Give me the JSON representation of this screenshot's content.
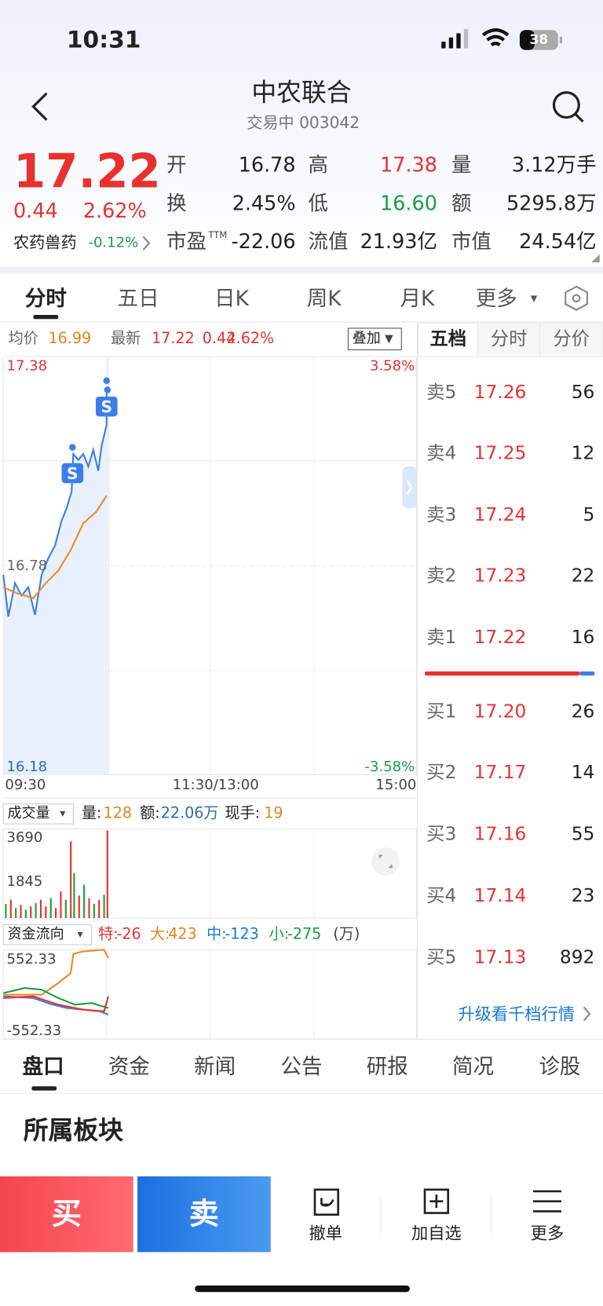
{
  "status_bar": {
    "time": "10:31",
    "battery": "38"
  },
  "header": {
    "title": "中农联合",
    "subtitle": "交易中 003042"
  },
  "quote": {
    "price": "17.22",
    "change": "0.44",
    "change_pct": "2.62%",
    "sector": "农药兽药",
    "sector_change": "-0.12%",
    "stats": [
      {
        "label": "开",
        "value": "16.78"
      },
      {
        "label": "高",
        "value": "17.38"
      },
      {
        "label": "量",
        "value": "3.12万手"
      },
      {
        "label": "换",
        "value": "2.45%"
      },
      {
        "label": "低",
        "value": "16.60"
      },
      {
        "label": "额",
        "value": "5295.8万"
      },
      {
        "label": "市盈",
        "sup": "TTM",
        "value": "-22.06"
      },
      {
        "label": "流值",
        "value": "21.93亿"
      },
      {
        "label": "市值",
        "value": "24.54亿"
      }
    ]
  },
  "chart_tabs": [
    "分时",
    "五日",
    "日K",
    "周K",
    "月K",
    "更多"
  ],
  "chart_info": {
    "avg_label": "均价",
    "avg": "16.99",
    "latest_label": "最新",
    "latest": "17.22",
    "change": "0.44",
    "change_pct": "2.62%",
    "overlay": "叠加"
  },
  "price_axis": {
    "high": "17.38",
    "open": "16.78",
    "low": "16.18",
    "high_pct": "3.58%",
    "low_pct": "-3.58%",
    "times": [
      "09:30",
      "11:30/13:00",
      "15:00"
    ]
  },
  "volume": {
    "selector": "成交量",
    "vol_label": "量:",
    "vol": "128",
    "amt_label": "额:",
    "amt": "22.06万",
    "hand_label": "现手:",
    "hand": "19",
    "ticks": [
      "3690",
      "1845"
    ]
  },
  "fund_flow": {
    "selector": "资金流向",
    "items": [
      {
        "label": "特:",
        "value": "-26"
      },
      {
        "label": "大:",
        "value": "423"
      },
      {
        "label": "中:",
        "value": "-123"
      },
      {
        "label": "小:",
        "value": "-275"
      }
    ],
    "unit": "(万)",
    "ticks": [
      "552.33",
      "-552.33"
    ]
  },
  "order_book": {
    "tabs": [
      "五档",
      "分时",
      "分价"
    ],
    "asks": [
      {
        "label": "卖5",
        "price": "17.26",
        "volume": "56"
      },
      {
        "label": "卖4",
        "price": "17.25",
        "volume": "12"
      },
      {
        "label": "卖3",
        "price": "17.24",
        "volume": "5"
      },
      {
        "label": "卖2",
        "price": "17.23",
        "volume": "22"
      },
      {
        "label": "卖1",
        "price": "17.22",
        "volume": "16"
      }
    ],
    "bids": [
      {
        "label": "买1",
        "price": "17.20",
        "volume": "26"
      },
      {
        "label": "买2",
        "price": "17.17",
        "volume": "14"
      },
      {
        "label": "买3",
        "price": "17.16",
        "volume": "55"
      },
      {
        "label": "买4",
        "price": "17.14",
        "volume": "23"
      },
      {
        "label": "买5",
        "price": "17.13",
        "volume": "892"
      }
    ],
    "upgrade": "升级看千档行情"
  },
  "bottom_tabs": [
    "盘口",
    "资金",
    "新闻",
    "公告",
    "研报",
    "简况",
    "诊股"
  ],
  "section_title": "所属板块",
  "actions": {
    "buy": "买",
    "sell": "卖",
    "cancel": "撤单",
    "watch": "加自选",
    "more": "更多"
  }
}
